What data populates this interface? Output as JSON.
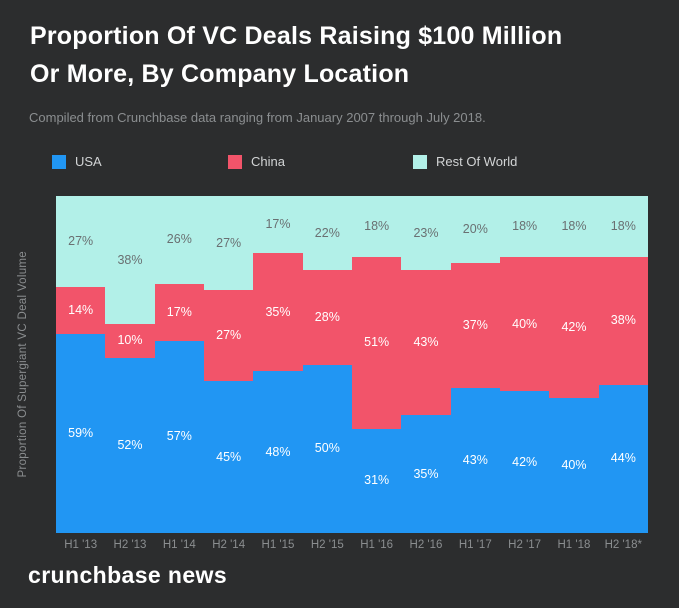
{
  "header": {
    "title_line1": "Proportion Of VC Deals Raising $100 Million",
    "title_line2": "Or More, By Company Location",
    "subtitle": "Compiled from Crunchbase data ranging from January 2007 through July 2018."
  },
  "footer": {
    "brand": "crunchbase news"
  },
  "theme": {
    "background": "#2c2d2e",
    "title_color": "#ffffff",
    "muted_text": "#8b8e90",
    "legend_text": "#d2d4d5"
  },
  "chart_data": {
    "type": "area",
    "stacking": "percent",
    "title": "Proportion Of VC Deals Raising $100 Million Or More, By Company Location",
    "subtitle": "Compiled from Crunchbase data ranging from January 2007 through July 2018.",
    "xlabel": "",
    "ylabel": "Proportion Of Supergiant VC Deal Volume",
    "ylim": [
      0,
      100
    ],
    "grid": false,
    "legend_position": "top",
    "value_suffix": "%",
    "categories": [
      "H1 '13",
      "H2 '13",
      "H1 '14",
      "H2 '14",
      "H1 '15",
      "H2 '15",
      "H1 '16",
      "H2 '16",
      "H1 '17",
      "H2 '17",
      "H1 '18",
      "H2 '18*"
    ],
    "series": [
      {
        "name": "USA",
        "color": "#2196f3",
        "label_color": "#ffffff",
        "values": [
          59,
          52,
          57,
          45,
          48,
          50,
          31,
          35,
          43,
          42,
          40,
          44
        ]
      },
      {
        "name": "China",
        "color": "#f2546a",
        "label_color": "#ffffff",
        "values": [
          14,
          10,
          17,
          27,
          35,
          28,
          51,
          43,
          37,
          40,
          42,
          38
        ]
      },
      {
        "name": "Rest Of World",
        "color": "#b2f0e8",
        "label_color": "#6a7072",
        "values": [
          27,
          38,
          26,
          27,
          17,
          22,
          18,
          23,
          20,
          18,
          18,
          18
        ]
      }
    ]
  }
}
